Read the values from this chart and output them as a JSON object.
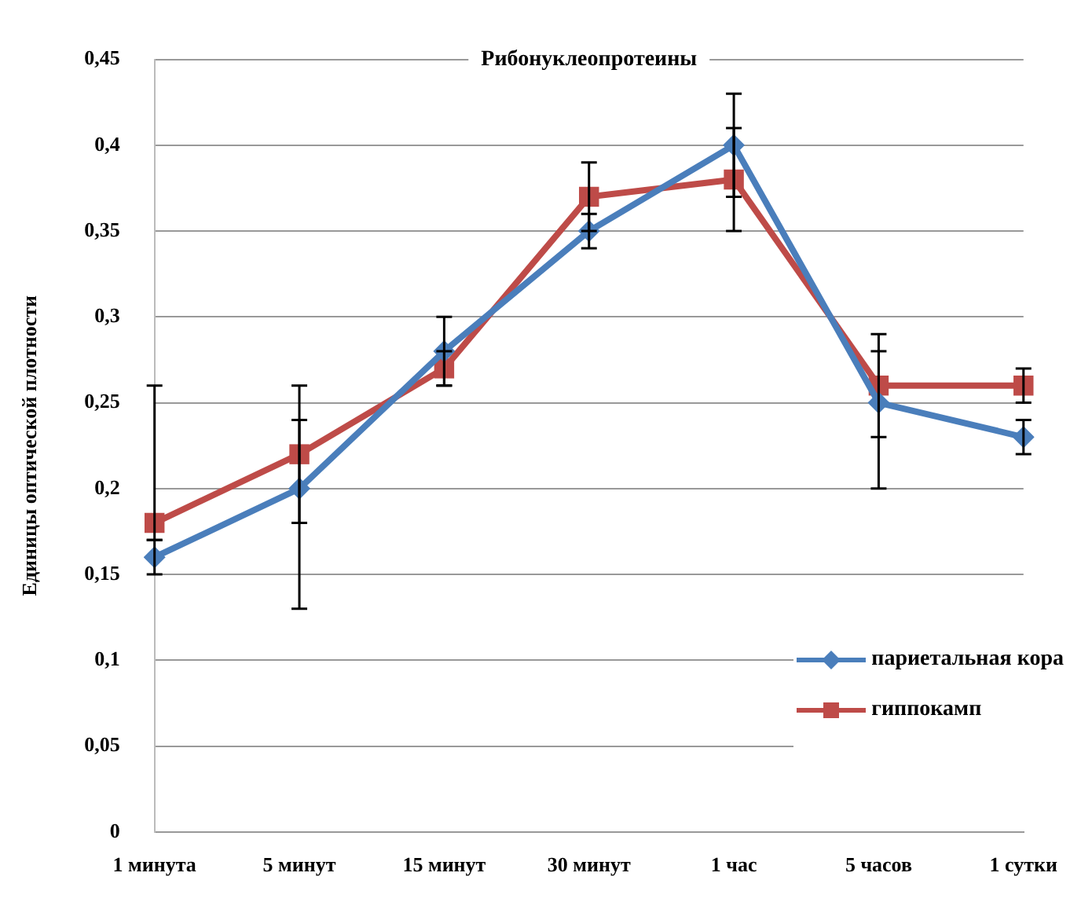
{
  "chart_data": {
    "type": "line",
    "title": "Рибонуклеопротеины",
    "ylabel": "Единицы оптической плотности",
    "categories": [
      "1 минута",
      "5 минут",
      "15 минут",
      "30 минут",
      "1 час",
      "5 часов",
      "1 сутки"
    ],
    "series": [
      {
        "name": "париетальная кора",
        "color": "#4a7ebb",
        "marker": "diamond",
        "values": [
          0.16,
          0.2,
          0.28,
          0.35,
          0.4,
          0.25,
          0.23
        ],
        "errors": [
          0.01,
          [
            0.13,
            0.24
          ],
          0.02,
          0.01,
          0.03,
          [
            0.2,
            0.28
          ],
          0.01
        ]
      },
      {
        "name": "гиппокамп",
        "color": "#be4b48",
        "marker": "square",
        "values": [
          0.18,
          0.22,
          0.27,
          0.37,
          0.38,
          0.26,
          0.26
        ],
        "errors": [
          [
            0.17,
            0.26
          ],
          0.04,
          0.01,
          0.02,
          0.03,
          0.03,
          0.01
        ]
      }
    ],
    "ylim": [
      0,
      0.45
    ],
    "yticks": [
      {
        "value": 0,
        "label": "0"
      },
      {
        "value": 0.05,
        "label": "0,05"
      },
      {
        "value": 0.1,
        "label": "0,1"
      },
      {
        "value": 0.15,
        "label": "0,15"
      },
      {
        "value": 0.2,
        "label": "0,2"
      },
      {
        "value": 0.25,
        "label": "0,25"
      },
      {
        "value": 0.3,
        "label": "0,3"
      },
      {
        "value": 0.35,
        "label": "0,35"
      },
      {
        "value": 0.4,
        "label": "0,4"
      },
      {
        "value": 0.45,
        "label": "0,45"
      }
    ],
    "grid": "y",
    "legend": "right",
    "line_style": "solid"
  }
}
